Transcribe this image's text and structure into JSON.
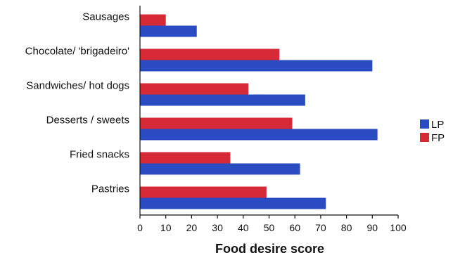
{
  "chart_data": {
    "type": "bar",
    "orientation": "horizontal",
    "categories": [
      "Sausages",
      "Chocolate/ 'brigadeiro'",
      "Sandwiches/ hot dogs",
      "Desserts / sweets",
      "Fried snacks",
      "Pastries"
    ],
    "series": [
      {
        "name": "FP",
        "color": "#d62a36",
        "values": [
          10,
          54,
          42,
          59,
          35,
          49
        ]
      },
      {
        "name": "LP",
        "color": "#2b4bc2",
        "values": [
          22,
          90,
          64,
          92,
          62,
          72
        ]
      }
    ],
    "xlabel": "Food desire score",
    "xlim": [
      0,
      100
    ],
    "xticks": [
      0,
      10,
      20,
      30,
      40,
      50,
      60,
      70,
      80,
      90,
      100
    ],
    "legend": {
      "placement": "right",
      "entries": [
        "LP",
        "FP"
      ]
    },
    "grid": false
  }
}
